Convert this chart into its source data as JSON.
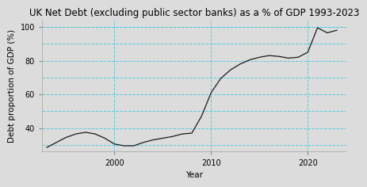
{
  "title": "UK Net Debt (excluding public sector banks) as a % of GDP 1993-2023",
  "xlabel": "Year",
  "ylabel": "Debt proportion of GDP (%)",
  "figure_bg_color": "#dcdcdc",
  "plot_bg_color": "#dcdcdc",
  "line_color": "#1a1a1a",
  "grid_color": "#40c8e0",
  "years": [
    1993,
    1994,
    1995,
    1996,
    1997,
    1998,
    1999,
    2000,
    2001,
    2002,
    2003,
    2004,
    2005,
    2006,
    2007,
    2008,
    2009,
    2010,
    2011,
    2012,
    2013,
    2014,
    2015,
    2016,
    2017,
    2018,
    2019,
    2020,
    2021,
    2022,
    2023
  ],
  "values": [
    28.5,
    31.5,
    34.5,
    36.5,
    37.5,
    36.5,
    34.0,
    30.5,
    29.5,
    29.5,
    31.5,
    33.0,
    34.0,
    35.0,
    36.5,
    37.0,
    47.0,
    61.0,
    69.5,
    74.5,
    78.0,
    80.5,
    82.0,
    83.0,
    82.5,
    81.5,
    82.0,
    85.0,
    99.5,
    96.5,
    98.0
  ],
  "xlim": [
    1992.5,
    2024
  ],
  "ylim": [
    26,
    104
  ],
  "yticks": [
    40,
    60,
    80,
    100
  ],
  "ytick_labels": [
    "40",
    "60",
    "80",
    "100"
  ],
  "xticks": [
    2000,
    2010,
    2020
  ],
  "extra_hlines": [
    30,
    50,
    70,
    90
  ],
  "title_fontsize": 8.5,
  "axis_label_fontsize": 7.5,
  "tick_fontsize": 7
}
